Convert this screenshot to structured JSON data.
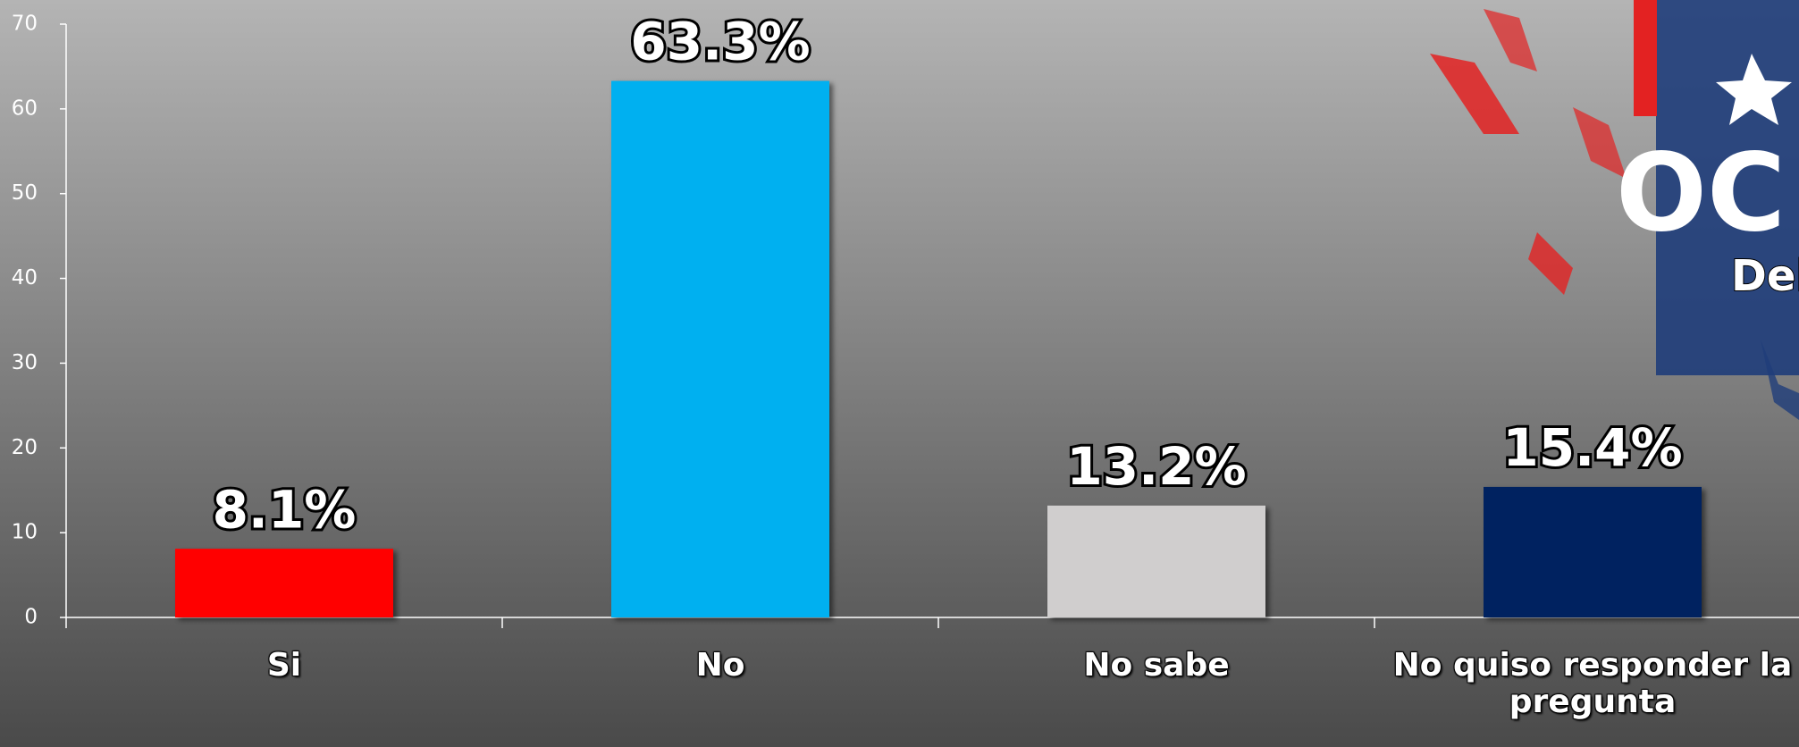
{
  "chart_data": {
    "type": "bar",
    "categories": [
      "Si",
      "No",
      "No sabe",
      "No quiso responder la pregunta"
    ],
    "values": [
      8.1,
      63.3,
      13.2,
      15.4
    ],
    "value_labels": [
      "8.1%",
      "63.3%",
      "13.2%",
      "15.4%"
    ],
    "colors": [
      "#ff0000",
      "#00b0f0",
      "#d0cece",
      "#002060"
    ],
    "ylim": [
      0,
      70
    ],
    "yticks": [
      0,
      10,
      20,
      30,
      40,
      50,
      60,
      70
    ],
    "grid": false
  },
  "logo": {
    "text": "OC",
    "subtitle": "Del"
  }
}
